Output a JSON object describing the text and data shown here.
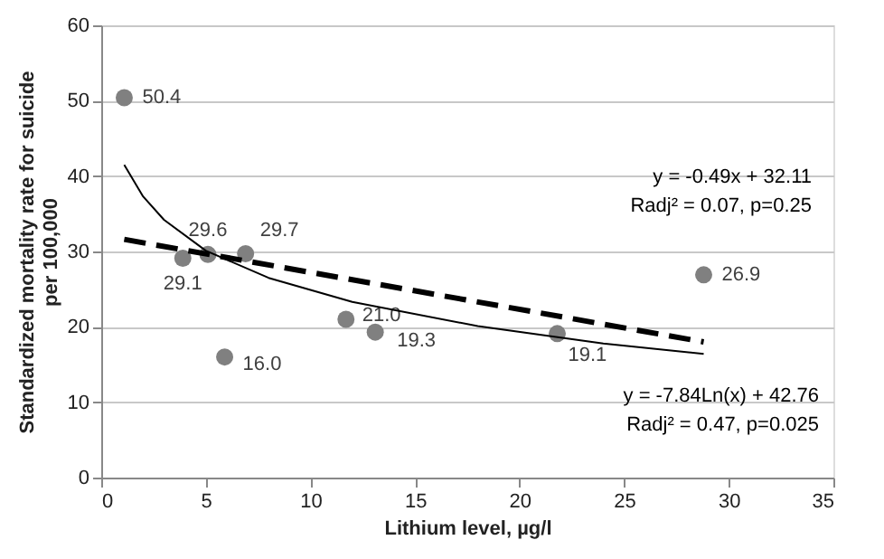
{
  "chart_data": {
    "type": "scatter",
    "xlabel": "Lithium level, µg/l",
    "ylabel": "Standardized mortality rate for suicide per 100,000",
    "xlim": [
      0,
      35
    ],
    "xticks": [
      0,
      5,
      10,
      15,
      20,
      25,
      30,
      35
    ],
    "ylim": [
      0,
      60
    ],
    "yticks": [
      0,
      10,
      20,
      30,
      40,
      50,
      60
    ],
    "grid": "y",
    "series": [
      {
        "type": "scatter",
        "color": "#808080",
        "marker": "circle",
        "x": [
          1.1,
          3.9,
          5.1,
          6.9,
          5.9,
          11.7,
          13.1,
          21.8,
          28.8
        ],
        "values": [
          50.4,
          29.1,
          29.6,
          29.7,
          16.0,
          21.0,
          19.3,
          19.1,
          26.9
        ],
        "value_labels": [
          "50.4",
          "29.1",
          "29.6",
          "29.7",
          "16.0",
          "21.0",
          "19.3",
          "19.1",
          "26.9"
        ]
      },
      {
        "type": "line",
        "color": "#000000",
        "line_style": "dashed",
        "marker": "none",
        "x": [
          1.1,
          28.8
        ],
        "values": [
          31.6,
          18.0
        ]
      },
      {
        "type": "line",
        "color": "#000000",
        "line_style": "solid",
        "marker": "none",
        "x": [
          1.1,
          2,
          3,
          5,
          8,
          12,
          18,
          24,
          28.8
        ],
        "values": [
          41.5,
          37.3,
          34.2,
          30.1,
          26.5,
          23.3,
          20.1,
          17.8,
          16.4
        ]
      }
    ],
    "annotations": [
      "y = -0.49x + 32.11",
      "Radj² = 0.07, p=0.25",
      "y = -7.84Ln(x) + 42.76",
      "Radj² = 0.47, p=0.025"
    ]
  }
}
